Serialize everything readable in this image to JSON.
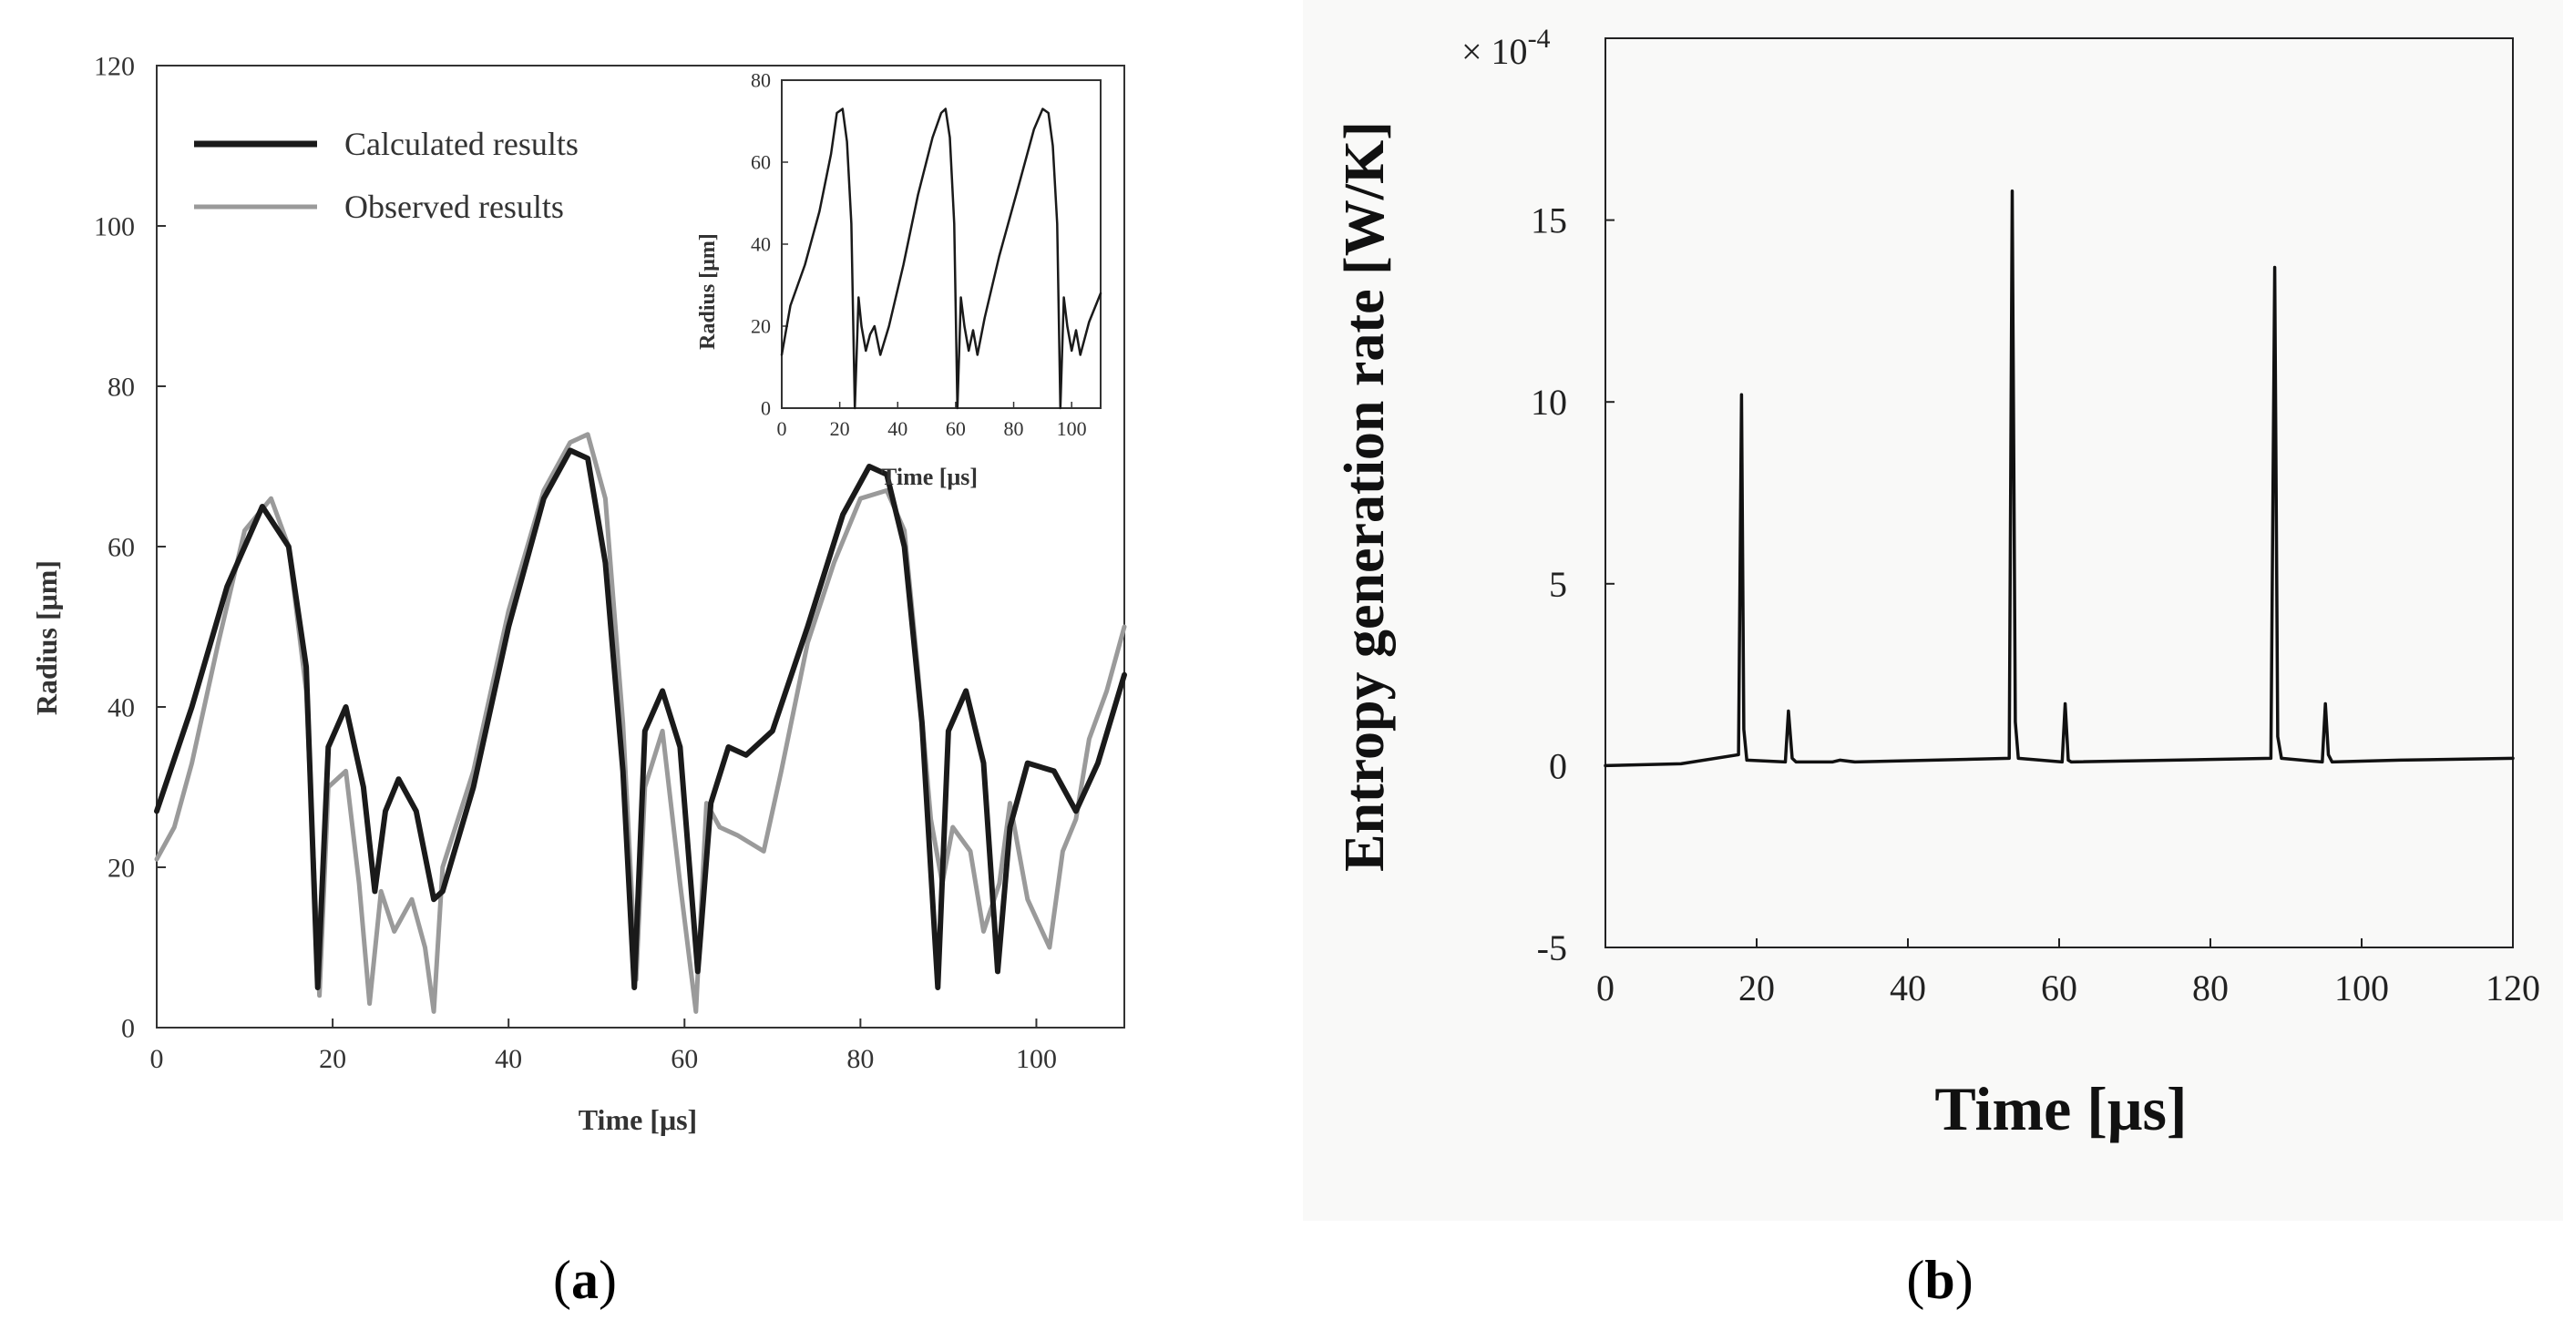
{
  "chart_data": [
    {
      "panel": "a",
      "caption": {
        "open": "(",
        "label": "a",
        "close": ")"
      },
      "type": "line",
      "title": "",
      "xlabel": "Time [μs]",
      "ylabel": "Radius [μm]",
      "xlim": [
        0,
        110
      ],
      "ylim": [
        0,
        120
      ],
      "xticks": [
        0,
        20,
        40,
        60,
        80,
        100
      ],
      "yticks": [
        0,
        20,
        40,
        60,
        80,
        100,
        120
      ],
      "legend": {
        "position": "top-left",
        "entries": [
          "Calculated results",
          "Observed results"
        ]
      },
      "series": [
        {
          "name": "Calculated results",
          "color": "#1a1a1a",
          "x": [
            0,
            4,
            8,
            12,
            15,
            17,
            18.3,
            19.5,
            21.5,
            23.5,
            24.8,
            26,
            27.5,
            29.5,
            31.5,
            32.5,
            36,
            40,
            44,
            47,
            49,
            51,
            53,
            54.3,
            55.5,
            57.5,
            59.5,
            61.5,
            63,
            65,
            67,
            70,
            74,
            78,
            81,
            83,
            85,
            87,
            88.8,
            90,
            92,
            94,
            95.6,
            97,
            99,
            102,
            104.5,
            107,
            110
          ],
          "y": [
            27,
            40,
            55,
            65,
            60,
            45,
            5,
            35,
            40,
            30,
            17,
            27,
            31,
            27,
            16,
            17,
            30,
            50,
            66,
            72,
            71,
            58,
            32,
            5,
            37,
            42,
            35,
            7,
            28,
            35,
            34,
            37,
            50,
            64,
            70,
            69,
            60,
            38,
            5,
            37,
            42,
            33,
            7,
            25,
            33,
            32,
            27,
            33,
            44
          ]
        },
        {
          "name": "Observed results",
          "color": "#9a9a9a",
          "x": [
            0,
            2,
            4,
            7,
            10,
            13,
            15,
            17,
            18.5,
            19.5,
            21.5,
            23,
            24.2,
            25.5,
            27,
            29,
            30.5,
            31.5,
            32.5,
            36,
            40,
            44,
            47,
            49,
            51,
            53,
            54.5,
            55.5,
            57.5,
            59.5,
            61.3,
            62.5,
            64,
            66,
            69,
            71,
            74,
            77,
            80,
            83,
            85,
            86.5,
            88,
            89.3,
            90.5,
            92.5,
            94,
            95.8,
            97,
            99,
            101.5,
            103,
            104.5,
            106,
            108,
            110
          ],
          "y": [
            21,
            25,
            33,
            48,
            62,
            66,
            60,
            42,
            4,
            30,
            32,
            18,
            3,
            17,
            12,
            16,
            10,
            2,
            20,
            32,
            52,
            67,
            73,
            74,
            66,
            38,
            6,
            30,
            37,
            18,
            2,
            28,
            25,
            24,
            22,
            32,
            48,
            58,
            66,
            67,
            62,
            45,
            26,
            18,
            25,
            22,
            12,
            18,
            28,
            16,
            10,
            22,
            26,
            36,
            42,
            50
          ]
        }
      ],
      "inset": {
        "type": "line",
        "xlabel": "Time [μs]",
        "ylabel": "Radius [μm]",
        "xlim": [
          0,
          110
        ],
        "ylim": [
          0,
          80
        ],
        "xticks": [
          0,
          20,
          40,
          60,
          80,
          100
        ],
        "yticks": [
          0,
          20,
          40,
          60,
          80
        ],
        "series": [
          {
            "name": "inset",
            "x": [
              0,
              3,
              8,
              13,
              17,
              19,
              21,
              22.5,
              24,
              25.2,
              26.5,
              27.5,
              29,
              30.5,
              32,
              34,
              37,
              42,
              47,
              52,
              55,
              56.5,
              58,
              59.5,
              60.6,
              61.8,
              63,
              64.5,
              66,
              67.5,
              70,
              75,
              82,
              87,
              90,
              92,
              93.5,
              95,
              96.1,
              97.3,
              98.5,
              100,
              101.5,
              103,
              106,
              110
            ],
            "y": [
              13,
              25,
              35,
              48,
              62,
              72,
              73,
              65,
              45,
              0,
              27,
              20,
              14,
              18,
              20,
              13,
              20,
              35,
              52,
              66,
              72,
              73,
              66,
              45,
              0,
              27,
              20,
              14,
              19,
              13,
              22,
              37,
              55,
              68,
              73,
              72,
              64,
              45,
              0,
              27,
              20,
              14,
              19,
              13,
              21,
              28
            ]
          }
        ]
      }
    },
    {
      "panel": "b",
      "caption": {
        "open": "(",
        "label": "b",
        "close": ")"
      },
      "type": "line",
      "title": "",
      "xlabel": "Time [μs]",
      "ylabel": "Entropy generation rate [W/K]",
      "scale_label": {
        "prefix": "× 10",
        "exponent": "-4"
      },
      "xlim": [
        0,
        120
      ],
      "ylim": [
        -5,
        20
      ],
      "xticks": [
        0,
        20,
        40,
        60,
        80,
        100,
        120
      ],
      "yticks": [
        -5,
        0,
        5,
        10,
        15
      ],
      "series": [
        {
          "name": "Entropy generation rate",
          "color": "#111111",
          "x": [
            0,
            10,
            17.6,
            18.0,
            18.3,
            18.7,
            23.8,
            24.2,
            24.7,
            25.2,
            30,
            31,
            33,
            53.4,
            53.8,
            54.2,
            54.6,
            60.4,
            60.8,
            61.2,
            61.6,
            88,
            88.5,
            88.9,
            89.4,
            94.8,
            95.2,
            95.6,
            96.1,
            105,
            120
          ],
          "y": [
            0,
            0.05,
            0.3,
            10.2,
            1.0,
            0.15,
            0.1,
            1.5,
            0.2,
            0.1,
            0.1,
            0.15,
            0.1,
            0.2,
            15.8,
            1.2,
            0.2,
            0.1,
            1.7,
            0.15,
            0.1,
            0.2,
            13.7,
            0.8,
            0.2,
            0.1,
            1.7,
            0.3,
            0.1,
            0.15,
            0.2
          ]
        }
      ]
    }
  ]
}
